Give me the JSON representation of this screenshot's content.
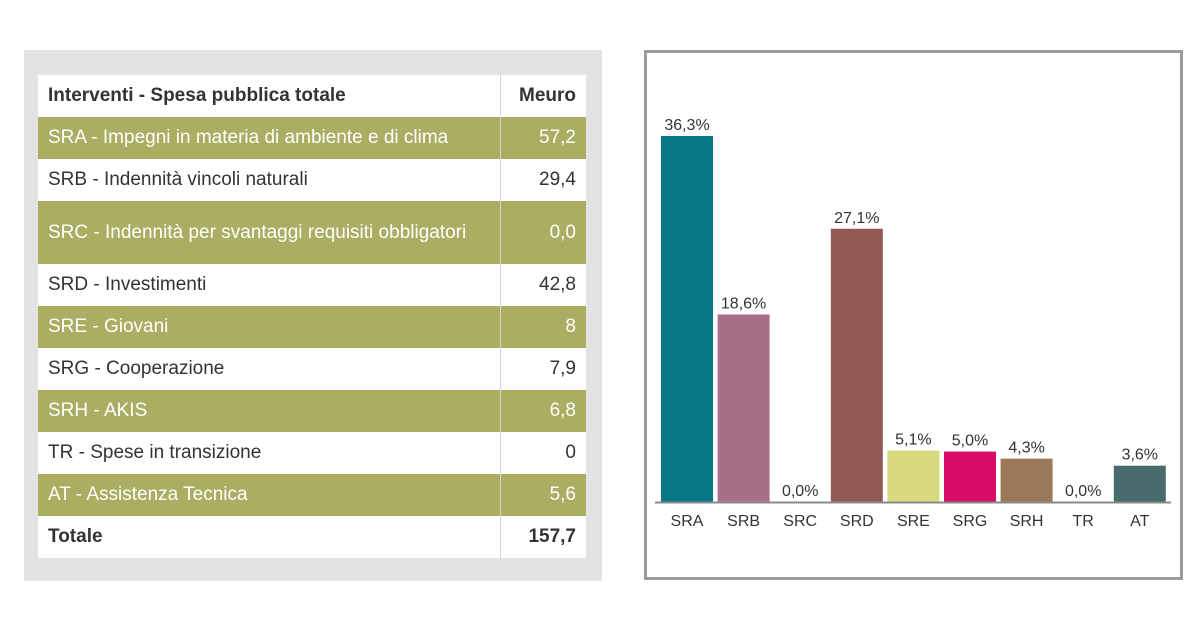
{
  "table": {
    "header": {
      "label": "Interventi - Spesa pubblica totale",
      "unit": "Meuro"
    },
    "rows": [
      {
        "label": "SRA - Impegni in materia di ambiente e di clima",
        "value": "57,2"
      },
      {
        "label": "SRB - Indennità vincoli naturali",
        "value": "29,4"
      },
      {
        "label": "SRC - Indennità per svantaggi requisiti obbligatori",
        "value": "0,0"
      },
      {
        "label": "SRD - Investimenti",
        "value": "42,8"
      },
      {
        "label": "SRE - Giovani",
        "value": "8"
      },
      {
        "label": "SRG - Cooperazione",
        "value": "7,9"
      },
      {
        "label": "SRH - AKIS",
        "value": "6,8"
      },
      {
        "label": "TR - Spese in transizione",
        "value": "0"
      },
      {
        "label": "AT - Assistenza Tecnica",
        "value": "5,6"
      }
    ],
    "total": {
      "label": "Totale",
      "value": "157,7"
    }
  },
  "colors": {
    "row_highlight": "#aaad62",
    "panel_bg": "#e3e3e3",
    "chart_border": "#9b9b9b"
  },
  "chart_data": {
    "type": "bar",
    "categories": [
      "SRA",
      "SRB",
      "SRC",
      "SRD",
      "SRE",
      "SRG",
      "SRH",
      "TR",
      "AT"
    ],
    "values": [
      36.3,
      18.6,
      0.0,
      27.1,
      5.1,
      5.0,
      4.3,
      0.0,
      3.6
    ],
    "value_labels": [
      "36,3%",
      "18,6%",
      "0,0%",
      "27,1%",
      "5,1%",
      "5,0%",
      "4,3%",
      "0,0%",
      "3,6%"
    ],
    "colors": [
      "#087785",
      "#a96f89",
      "#6b6b6b",
      "#925855",
      "#d7db7d",
      "#d80d68",
      "#9a7858",
      "#6b6b6b",
      "#4a6b6b"
    ],
    "title": "",
    "xlabel": "",
    "ylabel": "",
    "ylim": [
      0,
      36.3
    ],
    "grid": false,
    "legend": "none"
  }
}
